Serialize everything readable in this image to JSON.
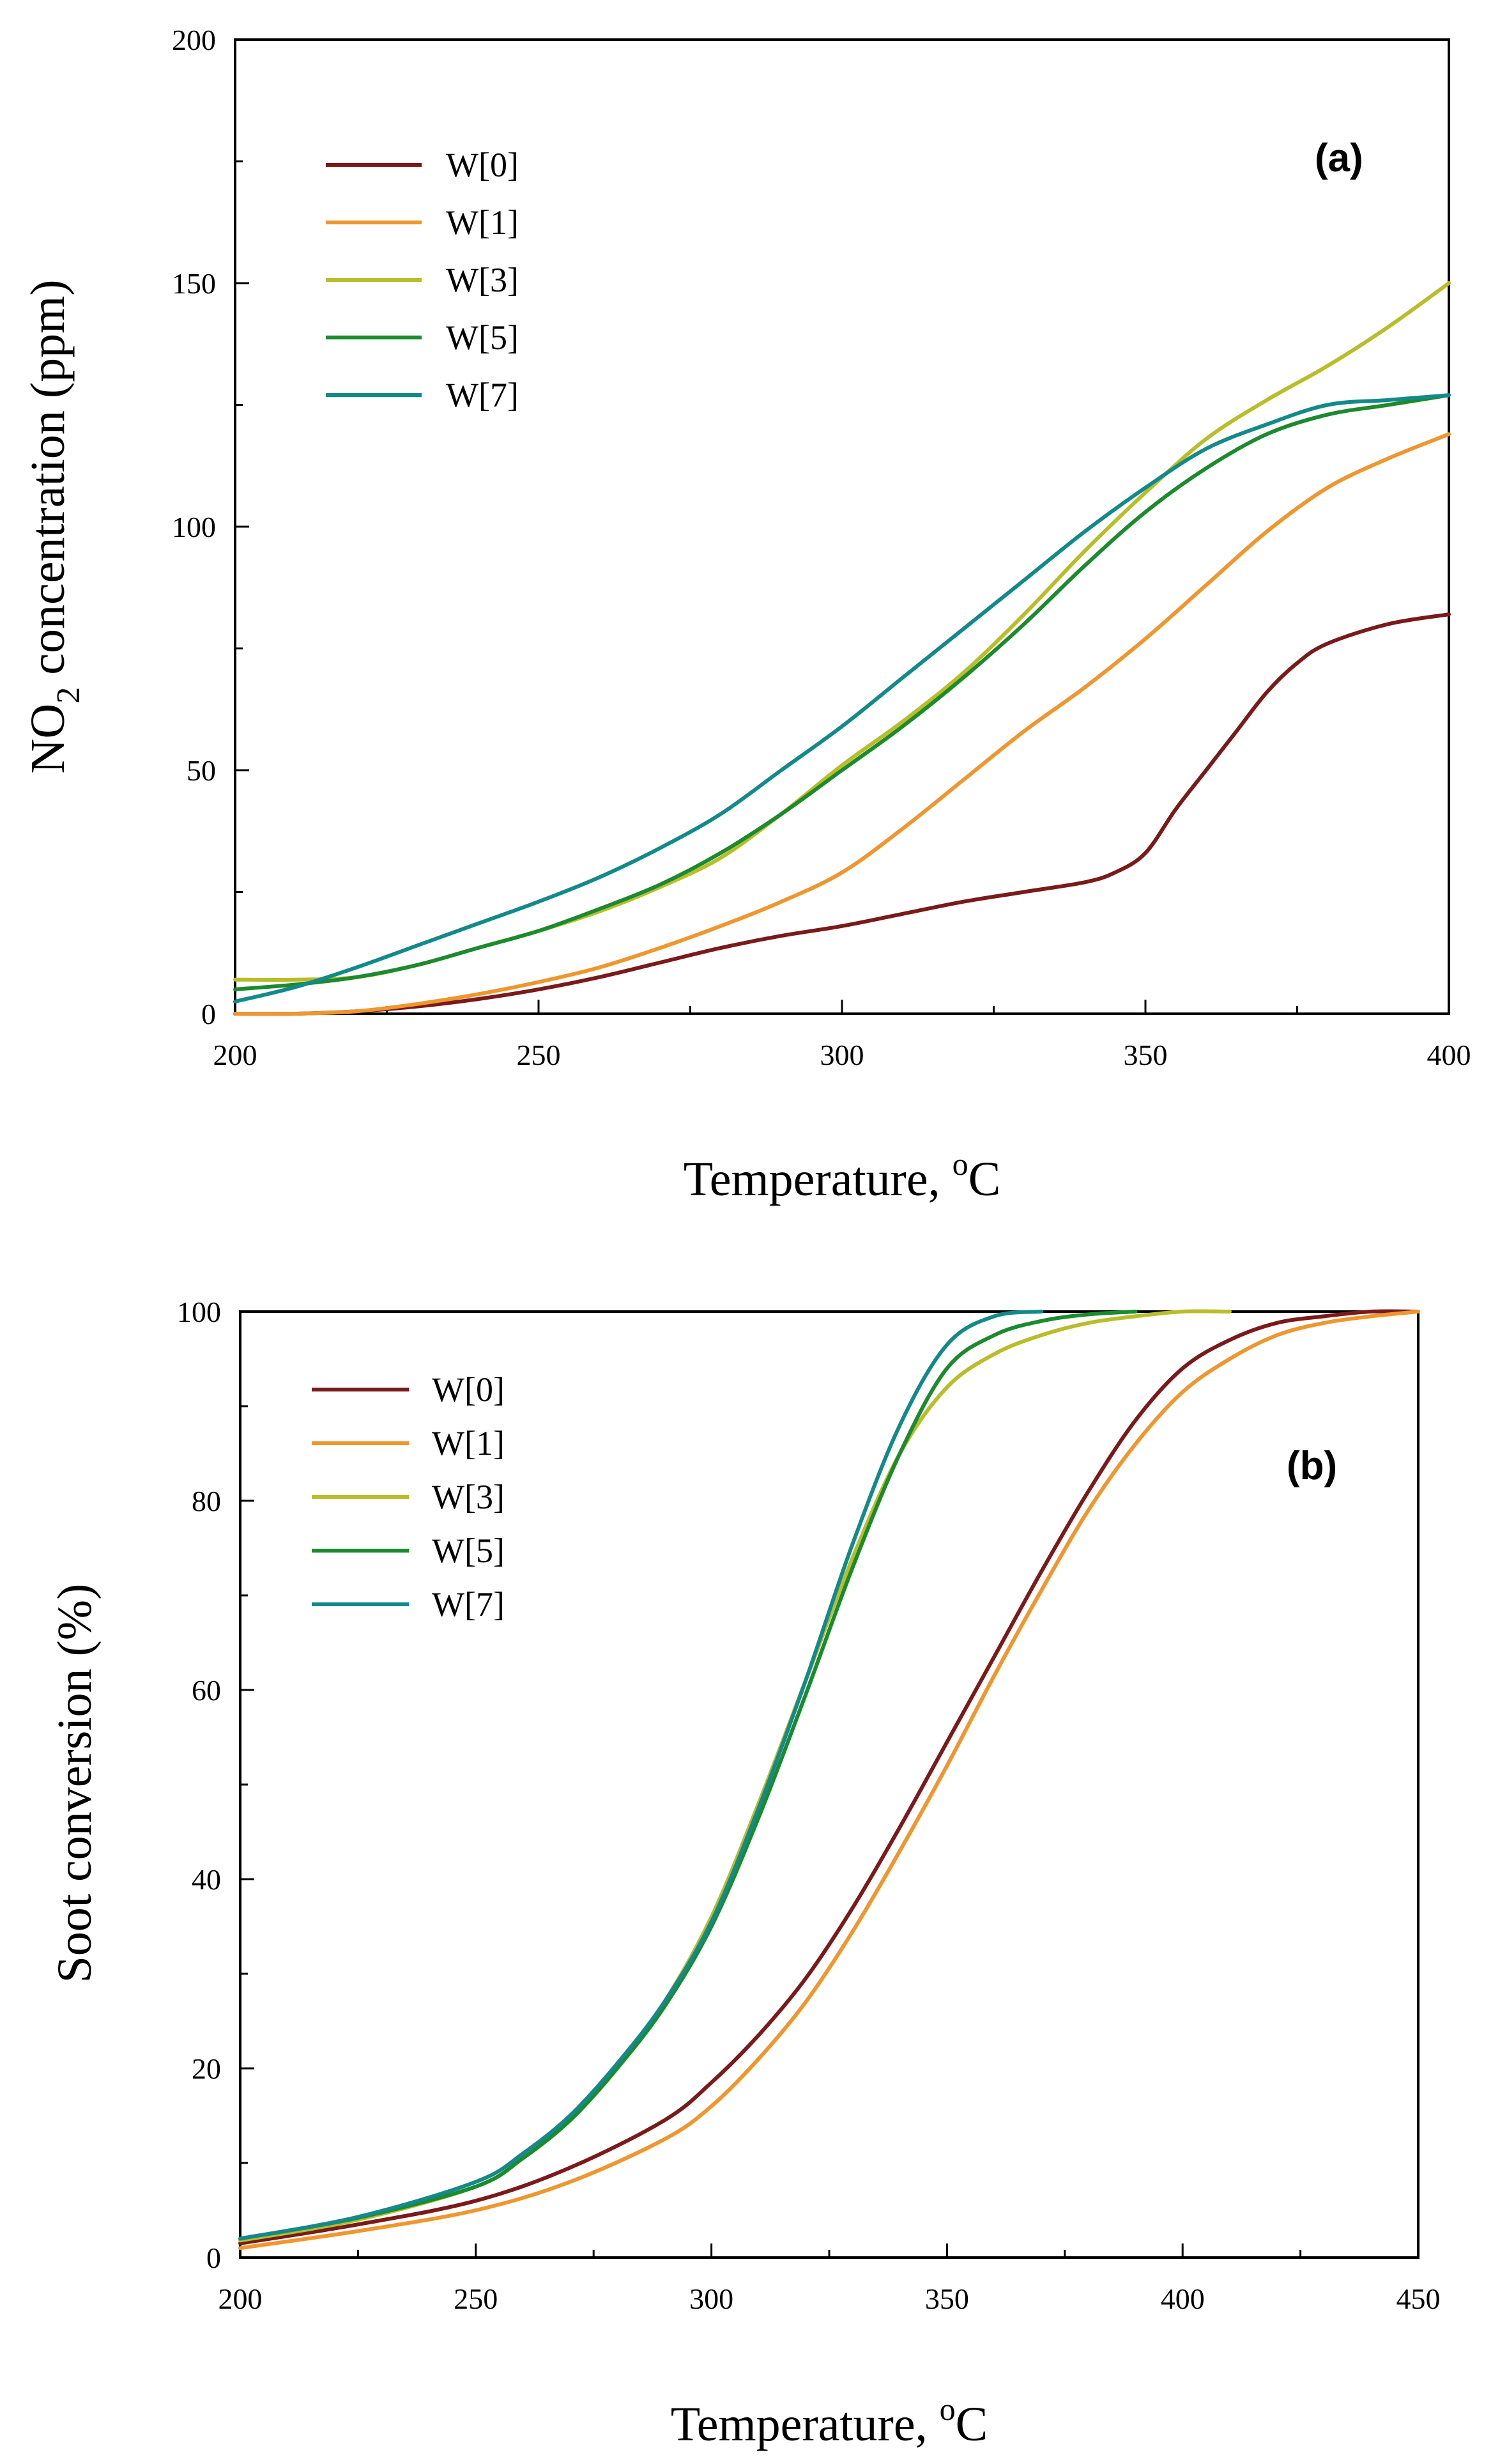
{
  "chart_data": [
    {
      "type": "line",
      "panel_label": "(a)",
      "title": "",
      "xlabel": "Temperature, ",
      "xlabel_sup": "o",
      "xlabel_unit": "C",
      "ylabel_pre": "NO",
      "ylabel_sub": "2",
      "ylabel_post": " concentration (ppm)",
      "xlim": [
        200,
        400
      ],
      "ylim": [
        0,
        200
      ],
      "x_ticks": [
        200,
        250,
        300,
        350,
        400
      ],
      "y_ticks": [
        0,
        50,
        100,
        150,
        200
      ],
      "legend_position": "top-left",
      "series": [
        {
          "name": "W[0]",
          "color": "#7a1a1a",
          "x": [
            200,
            210,
            220,
            230,
            240,
            250,
            260,
            270,
            280,
            290,
            300,
            310,
            320,
            330,
            340,
            345,
            350,
            355,
            360,
            365,
            370,
            375,
            380,
            390,
            400
          ],
          "y": [
            0,
            0,
            0.5,
            1.5,
            3,
            5,
            7.5,
            10.5,
            13.5,
            16,
            18,
            20.5,
            23,
            25,
            27,
            29,
            33,
            42,
            50,
            58,
            66,
            72,
            76,
            80,
            82
          ]
        },
        {
          "name": "W[1]",
          "color": "#f0962e",
          "x": [
            200,
            210,
            220,
            230,
            240,
            250,
            260,
            270,
            280,
            290,
            300,
            310,
            320,
            330,
            340,
            350,
            360,
            370,
            380,
            390,
            400
          ],
          "y": [
            0,
            0,
            0.5,
            2,
            4,
            6.5,
            9.5,
            13.5,
            18,
            23,
            29,
            38,
            48,
            58,
            67,
            77,
            88,
            99,
            108,
            114,
            119
          ]
        },
        {
          "name": "W[3]",
          "color": "#b8be2a",
          "x": [
            200,
            210,
            220,
            230,
            240,
            250,
            260,
            270,
            280,
            290,
            300,
            310,
            320,
            330,
            340,
            350,
            360,
            370,
            380,
            390,
            400
          ],
          "y": [
            7,
            7,
            7.5,
            10,
            13.5,
            17,
            21,
            26,
            32,
            41,
            51,
            60,
            70,
            82,
            95,
            107,
            118,
            126,
            133,
            141,
            150
          ]
        },
        {
          "name": "W[5]",
          "color": "#1c8a2e",
          "x": [
            200,
            210,
            220,
            230,
            240,
            250,
            260,
            270,
            280,
            290,
            300,
            310,
            320,
            330,
            340,
            350,
            360,
            370,
            380,
            390,
            400
          ],
          "y": [
            5,
            6,
            7.5,
            10,
            13.5,
            17,
            21.5,
            26.5,
            33,
            41,
            50,
            59,
            69,
            80,
            92,
            103,
            112,
            119,
            123,
            125,
            127
          ]
        },
        {
          "name": "W[7]",
          "color": "#138a8a",
          "x": [
            200,
            210,
            220,
            230,
            240,
            250,
            260,
            270,
            280,
            290,
            300,
            310,
            320,
            330,
            340,
            350,
            360,
            370,
            380,
            390,
            400
          ],
          "y": [
            2.5,
            5.5,
            9.5,
            14,
            18.5,
            23,
            28,
            34,
            41,
            50,
            59,
            69,
            79,
            89,
            99,
            108,
            116,
            121,
            125,
            126,
            127
          ]
        }
      ]
    },
    {
      "type": "line",
      "panel_label": "(b)",
      "title": "",
      "xlabel": "Temperature, ",
      "xlabel_sup": "o",
      "xlabel_unit": "C",
      "ylabel": "Soot conversion (%)",
      "xlim": [
        200,
        450
      ],
      "ylim": [
        0,
        100
      ],
      "x_ticks": [
        200,
        250,
        300,
        350,
        400,
        450
      ],
      "y_ticks": [
        0,
        20,
        40,
        60,
        80,
        100
      ],
      "legend_position": "top-left",
      "series": [
        {
          "name": "W[0]",
          "color": "#7a1a1a",
          "x": [
            200,
            225,
            250,
            270,
            290,
            300,
            310,
            320,
            330,
            340,
            350,
            360,
            370,
            380,
            390,
            400,
            410,
            420,
            430,
            440,
            450
          ],
          "y": [
            1.5,
            3.5,
            6,
            9.5,
            14.5,
            18.5,
            23.5,
            29.5,
            37,
            45.5,
            54.5,
            63.5,
            72.5,
            81,
            88.5,
            94,
            97,
            98.8,
            99.5,
            100,
            100
          ]
        },
        {
          "name": "W[1]",
          "color": "#f0962e",
          "x": [
            200,
            225,
            250,
            270,
            290,
            300,
            310,
            320,
            330,
            340,
            350,
            360,
            370,
            380,
            390,
            400,
            410,
            420,
            430,
            440,
            450
          ],
          "y": [
            1,
            2.8,
            5,
            8,
            12.5,
            16,
            21,
            27,
            34.5,
            43,
            52,
            61.5,
            70.5,
            79,
            86,
            91.5,
            95,
            97.5,
            98.8,
            99.5,
            100
          ]
        },
        {
          "name": "W[3]",
          "color": "#b8be2a",
          "x": [
            200,
            225,
            250,
            260,
            270,
            280,
            290,
            300,
            310,
            320,
            330,
            340,
            350,
            360,
            370,
            380,
            390,
            400,
            410
          ],
          "y": [
            1.8,
            4,
            7.5,
            10.5,
            14.5,
            20,
            27,
            36,
            48,
            61,
            74,
            85,
            92,
            95.5,
            97.5,
            98.8,
            99.5,
            100,
            100
          ]
        },
        {
          "name": "W[5]",
          "color": "#1c8a2e",
          "x": [
            200,
            225,
            250,
            260,
            270,
            280,
            290,
            300,
            310,
            320,
            330,
            340,
            350,
            360,
            370,
            380,
            390
          ],
          "y": [
            2,
            4.2,
            7.5,
            10.5,
            14.5,
            20,
            26.5,
            35,
            46.5,
            59.5,
            73,
            85,
            94,
            97.5,
            99,
            99.7,
            100
          ]
        },
        {
          "name": "W[7]",
          "color": "#138a8a",
          "x": [
            200,
            225,
            250,
            260,
            270,
            280,
            290,
            300,
            310,
            320,
            330,
            340,
            350,
            360,
            370
          ],
          "y": [
            2,
            4.3,
            8,
            11,
            15,
            20.5,
            27,
            35.5,
            47.5,
            61,
            75.5,
            88,
            96.5,
            99.5,
            100
          ]
        }
      ]
    }
  ]
}
